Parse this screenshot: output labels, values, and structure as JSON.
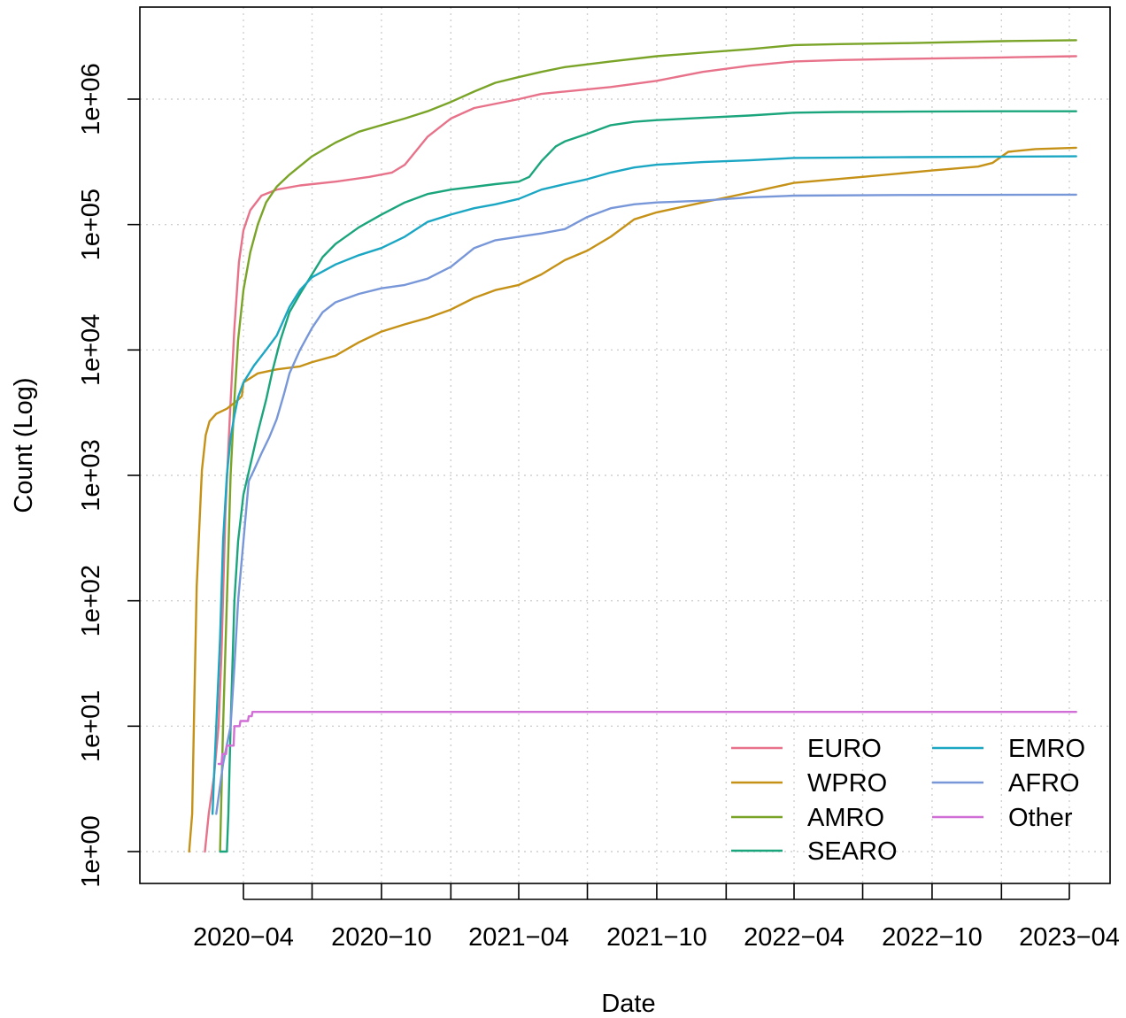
{
  "chart_data": {
    "type": "line",
    "title": "",
    "xlabel": "Date",
    "ylabel": "Count (Log)",
    "y_scale": "log10",
    "ylim": [
      1,
      3000000
    ],
    "xlim": [
      "2020-01-01",
      "2023-04-30"
    ],
    "grid": true,
    "legend_position": "bottom-right",
    "x_ticks": [
      {
        "date": "2020-04-01",
        "label": "2020−04"
      },
      {
        "date": "2020-07-01",
        "label": ""
      },
      {
        "date": "2020-10-01",
        "label": "2020−10"
      },
      {
        "date": "2021-01-01",
        "label": ""
      },
      {
        "date": "2021-04-01",
        "label": "2021−04"
      },
      {
        "date": "2021-07-01",
        "label": ""
      },
      {
        "date": "2021-10-01",
        "label": "2021−10"
      },
      {
        "date": "2022-01-01",
        "label": ""
      },
      {
        "date": "2022-04-01",
        "label": "2022−04"
      },
      {
        "date": "2022-07-01",
        "label": ""
      },
      {
        "date": "2022-10-01",
        "label": "2022−10"
      },
      {
        "date": "2023-01-01",
        "label": ""
      },
      {
        "date": "2023-04-01",
        "label": "2023−04"
      }
    ],
    "y_ticks": [
      {
        "value": 1,
        "label": "1e+00"
      },
      {
        "value": 10,
        "label": "1e+01"
      },
      {
        "value": 100,
        "label": "1e+02"
      },
      {
        "value": 1000,
        "label": "1e+03"
      },
      {
        "value": 10000,
        "label": "1e+04"
      },
      {
        "value": 100000,
        "label": "1e+05"
      },
      {
        "value": 1000000,
        "label": "1e+06"
      }
    ],
    "series": [
      {
        "name": "EURO",
        "color": "#E7728A",
        "points": [
          [
            "2020-02-10",
            1
          ],
          [
            "2020-02-15",
            2
          ],
          [
            "2020-02-22",
            4
          ],
          [
            "2020-02-28",
            10
          ],
          [
            "2020-03-03",
            40
          ],
          [
            "2020-03-08",
            500
          ],
          [
            "2020-03-14",
            3000
          ],
          [
            "2020-03-20",
            15000
          ],
          [
            "2020-03-26",
            50000
          ],
          [
            "2020-04-01",
            90000
          ],
          [
            "2020-04-10",
            130000
          ],
          [
            "2020-04-25",
            170000
          ],
          [
            "2020-05-15",
            190000
          ],
          [
            "2020-06-15",
            205000
          ],
          [
            "2020-08-01",
            220000
          ],
          [
            "2020-09-15",
            240000
          ],
          [
            "2020-10-15",
            260000
          ],
          [
            "2020-11-01",
            300000
          ],
          [
            "2020-12-01",
            500000
          ],
          [
            "2021-01-01",
            700000
          ],
          [
            "2021-02-01",
            850000
          ],
          [
            "2021-04-01",
            1000000
          ],
          [
            "2021-05-01",
            1100000
          ],
          [
            "2021-06-01",
            1150000
          ],
          [
            "2021-08-01",
            1250000
          ],
          [
            "2021-10-01",
            1400000
          ],
          [
            "2021-12-01",
            1650000
          ],
          [
            "2022-02-01",
            1850000
          ],
          [
            "2022-04-01",
            2000000
          ],
          [
            "2022-06-01",
            2050000
          ],
          [
            "2022-09-01",
            2100000
          ],
          [
            "2023-01-01",
            2150000
          ],
          [
            "2023-04-10",
            2200000
          ]
        ]
      },
      {
        "name": "WPRO",
        "color": "#C59116",
        "points": [
          [
            "2020-01-20",
            1
          ],
          [
            "2020-01-24",
            2
          ],
          [
            "2020-01-27",
            17
          ],
          [
            "2020-01-30",
            130
          ],
          [
            "2020-02-03",
            450
          ],
          [
            "2020-02-06",
            1100
          ],
          [
            "2020-02-11",
            2100
          ],
          [
            "2020-02-16",
            2700
          ],
          [
            "2020-02-25",
            3100
          ],
          [
            "2020-03-10",
            3400
          ],
          [
            "2020-03-25",
            4000
          ],
          [
            "2020-03-30",
            4300
          ],
          [
            "2020-04-01",
            5500
          ],
          [
            "2020-04-20",
            6500
          ],
          [
            "2020-05-15",
            7000
          ],
          [
            "2020-06-15",
            7400
          ],
          [
            "2020-07-01",
            8000
          ],
          [
            "2020-08-01",
            9000
          ],
          [
            "2020-09-01",
            11500
          ],
          [
            "2020-10-01",
            14000
          ],
          [
            "2020-11-01",
            16000
          ],
          [
            "2020-12-01",
            18000
          ],
          [
            "2021-01-01",
            21000
          ],
          [
            "2021-02-01",
            26000
          ],
          [
            "2021-03-01",
            30000
          ],
          [
            "2021-04-01",
            33000
          ],
          [
            "2021-05-01",
            40000
          ],
          [
            "2021-06-01",
            52000
          ],
          [
            "2021-07-01",
            62000
          ],
          [
            "2021-08-01",
            80000
          ],
          [
            "2021-09-01",
            110000
          ],
          [
            "2021-10-01",
            125000
          ],
          [
            "2021-12-01",
            150000
          ],
          [
            "2022-02-01",
            180000
          ],
          [
            "2022-04-01",
            215000
          ],
          [
            "2022-07-01",
            240000
          ],
          [
            "2022-10-01",
            270000
          ],
          [
            "2022-12-01",
            290000
          ],
          [
            "2022-12-20",
            310000
          ],
          [
            "2023-01-10",
            380000
          ],
          [
            "2023-02-15",
            400000
          ],
          [
            "2023-04-10",
            410000
          ]
        ]
      },
      {
        "name": "AMRO",
        "color": "#7AA428",
        "points": [
          [
            "2020-03-01",
            1
          ],
          [
            "2020-03-05",
            10
          ],
          [
            "2020-03-10",
            100
          ],
          [
            "2020-03-15",
            1000
          ],
          [
            "2020-03-20",
            4000
          ],
          [
            "2020-03-25",
            12000
          ],
          [
            "2020-04-01",
            30000
          ],
          [
            "2020-04-10",
            60000
          ],
          [
            "2020-04-20",
            100000
          ],
          [
            "2020-05-01",
            150000
          ],
          [
            "2020-05-15",
            200000
          ],
          [
            "2020-06-01",
            250000
          ],
          [
            "2020-07-01",
            350000
          ],
          [
            "2020-08-01",
            450000
          ],
          [
            "2020-09-01",
            550000
          ],
          [
            "2020-10-01",
            620000
          ],
          [
            "2020-11-01",
            700000
          ],
          [
            "2020-12-01",
            800000
          ],
          [
            "2021-01-01",
            950000
          ],
          [
            "2021-02-01",
            1150000
          ],
          [
            "2021-03-01",
            1350000
          ],
          [
            "2021-04-01",
            1500000
          ],
          [
            "2021-05-01",
            1650000
          ],
          [
            "2021-06-01",
            1800000
          ],
          [
            "2021-08-01",
            2000000
          ],
          [
            "2021-10-01",
            2200000
          ],
          [
            "2021-12-01",
            2350000
          ],
          [
            "2022-02-01",
            2500000
          ],
          [
            "2022-04-01",
            2700000
          ],
          [
            "2022-06-01",
            2750000
          ],
          [
            "2022-09-01",
            2800000
          ],
          [
            "2023-01-01",
            2900000
          ],
          [
            "2023-04-10",
            2950000
          ]
        ]
      },
      {
        "name": "SEARO",
        "color": "#1BA57C",
        "points": [
          [
            "2020-03-01",
            1
          ],
          [
            "2020-03-10",
            1
          ],
          [
            "2020-03-12",
            2
          ],
          [
            "2020-03-15",
            10
          ],
          [
            "2020-03-20",
            100
          ],
          [
            "2020-03-25",
            300
          ],
          [
            "2020-04-01",
            700
          ],
          [
            "2020-04-10",
            1200
          ],
          [
            "2020-04-20",
            2200
          ],
          [
            "2020-05-01",
            4000
          ],
          [
            "2020-05-10",
            7000
          ],
          [
            "2020-05-20",
            12000
          ],
          [
            "2020-06-01",
            20000
          ],
          [
            "2020-06-15",
            28000
          ],
          [
            "2020-07-01",
            40000
          ],
          [
            "2020-07-15",
            55000
          ],
          [
            "2020-08-01",
            70000
          ],
          [
            "2020-09-01",
            95000
          ],
          [
            "2020-10-01",
            120000
          ],
          [
            "2020-11-01",
            150000
          ],
          [
            "2020-12-01",
            175000
          ],
          [
            "2021-01-01",
            190000
          ],
          [
            "2021-02-01",
            200000
          ],
          [
            "2021-03-01",
            210000
          ],
          [
            "2021-04-01",
            220000
          ],
          [
            "2021-04-15",
            240000
          ],
          [
            "2021-05-01",
            320000
          ],
          [
            "2021-05-20",
            420000
          ],
          [
            "2021-06-01",
            460000
          ],
          [
            "2021-07-01",
            530000
          ],
          [
            "2021-08-01",
            620000
          ],
          [
            "2021-09-01",
            660000
          ],
          [
            "2021-10-01",
            680000
          ],
          [
            "2021-12-01",
            710000
          ],
          [
            "2022-02-01",
            740000
          ],
          [
            "2022-04-01",
            780000
          ],
          [
            "2022-06-01",
            790000
          ],
          [
            "2022-09-01",
            795000
          ],
          [
            "2023-01-01",
            800000
          ],
          [
            "2023-04-10",
            800000
          ]
        ]
      },
      {
        "name": "EMRO",
        "color": "#1BA7C4",
        "points": [
          [
            "2020-02-20",
            2
          ],
          [
            "2020-02-22",
            4
          ],
          [
            "2020-02-25",
            10
          ],
          [
            "2020-03-01",
            50
          ],
          [
            "2020-03-05",
            300
          ],
          [
            "2020-03-10",
            1000
          ],
          [
            "2020-03-15",
            2000
          ],
          [
            "2020-03-20",
            3000
          ],
          [
            "2020-03-25",
            4200
          ],
          [
            "2020-04-01",
            5500
          ],
          [
            "2020-04-15",
            7500
          ],
          [
            "2020-05-01",
            10000
          ],
          [
            "2020-05-15",
            13000
          ],
          [
            "2020-06-01",
            22000
          ],
          [
            "2020-06-15",
            30000
          ],
          [
            "2020-07-01",
            38000
          ],
          [
            "2020-08-01",
            48000
          ],
          [
            "2020-09-01",
            57000
          ],
          [
            "2020-10-01",
            65000
          ],
          [
            "2020-11-01",
            80000
          ],
          [
            "2020-12-01",
            105000
          ],
          [
            "2021-01-01",
            120000
          ],
          [
            "2021-02-01",
            135000
          ],
          [
            "2021-03-01",
            145000
          ],
          [
            "2021-04-01",
            160000
          ],
          [
            "2021-05-01",
            190000
          ],
          [
            "2021-06-01",
            210000
          ],
          [
            "2021-07-01",
            230000
          ],
          [
            "2021-08-01",
            260000
          ],
          [
            "2021-09-01",
            285000
          ],
          [
            "2021-10-01",
            300000
          ],
          [
            "2021-12-01",
            315000
          ],
          [
            "2022-02-01",
            325000
          ],
          [
            "2022-04-01",
            340000
          ],
          [
            "2022-09-01",
            345000
          ],
          [
            "2023-04-10",
            350000
          ]
        ]
      },
      {
        "name": "AFRO",
        "color": "#7897D9",
        "points": [
          [
            "2020-02-25",
            2
          ],
          [
            "2020-03-05",
            5
          ],
          [
            "2020-03-15",
            10
          ],
          [
            "2020-03-20",
            30
          ],
          [
            "2020-03-25",
            100
          ],
          [
            "2020-04-01",
            300
          ],
          [
            "2020-04-08",
            900
          ],
          [
            "2020-04-15",
            1100
          ],
          [
            "2020-04-25",
            1500
          ],
          [
            "2020-05-05",
            2000
          ],
          [
            "2020-05-15",
            2800
          ],
          [
            "2020-05-25",
            4500
          ],
          [
            "2020-06-01",
            6500
          ],
          [
            "2020-06-15",
            10000
          ],
          [
            "2020-07-01",
            15000
          ],
          [
            "2020-07-15",
            20000
          ],
          [
            "2020-08-01",
            24000
          ],
          [
            "2020-09-01",
            28000
          ],
          [
            "2020-10-01",
            31000
          ],
          [
            "2020-11-01",
            33000
          ],
          [
            "2020-12-01",
            37000
          ],
          [
            "2021-01-01",
            46000
          ],
          [
            "2021-02-01",
            65000
          ],
          [
            "2021-03-01",
            75000
          ],
          [
            "2021-04-01",
            80000
          ],
          [
            "2021-05-01",
            85000
          ],
          [
            "2021-06-01",
            92000
          ],
          [
            "2021-07-01",
            115000
          ],
          [
            "2021-08-01",
            135000
          ],
          [
            "2021-09-01",
            145000
          ],
          [
            "2021-10-01",
            150000
          ],
          [
            "2021-12-01",
            155000
          ],
          [
            "2022-02-01",
            165000
          ],
          [
            "2022-04-01",
            170000
          ],
          [
            "2022-09-01",
            172000
          ],
          [
            "2023-04-10",
            173000
          ]
        ]
      },
      {
        "name": "Other",
        "color": "#D16FD6",
        "points": [
          [
            "2020-02-28",
            5
          ],
          [
            "2020-03-03",
            5
          ],
          [
            "2020-03-04",
            6
          ],
          [
            "2020-03-09",
            6
          ],
          [
            "2020-03-10",
            7
          ],
          [
            "2020-03-19",
            7
          ],
          [
            "2020-03-20",
            10
          ],
          [
            "2020-03-27",
            10
          ],
          [
            "2020-03-28",
            11
          ],
          [
            "2020-04-07",
            11
          ],
          [
            "2020-04-08",
            12
          ],
          [
            "2020-04-12",
            12
          ],
          [
            "2020-04-13",
            13
          ],
          [
            "2023-04-10",
            13
          ]
        ]
      }
    ],
    "legend": [
      {
        "series": "EURO",
        "column": 0,
        "row": 0
      },
      {
        "series": "WPRO",
        "column": 0,
        "row": 1
      },
      {
        "series": "AMRO",
        "column": 0,
        "row": 2
      },
      {
        "series": "SEARO",
        "column": 0,
        "row": 3
      },
      {
        "series": "EMRO",
        "column": 1,
        "row": 0
      },
      {
        "series": "AFRO",
        "column": 1,
        "row": 1
      },
      {
        "series": "Other",
        "column": 1,
        "row": 2
      }
    ]
  }
}
